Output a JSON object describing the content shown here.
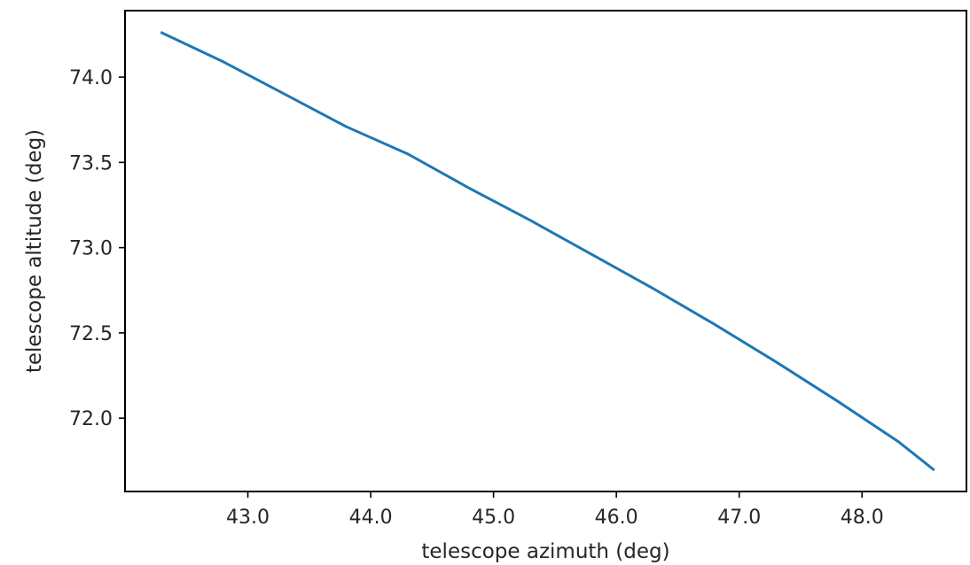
{
  "chart_data": {
    "type": "line",
    "title": "",
    "xlabel": "telescope azimuth (deg)",
    "ylabel": "telescope altitude (deg)",
    "xlim": [
      42.0,
      48.85
    ],
    "ylim": [
      71.57,
      74.39
    ],
    "xticks": [
      43.0,
      44.0,
      45.0,
      46.0,
      47.0,
      48.0
    ],
    "yticks": [
      72.0,
      72.5,
      73.0,
      73.5,
      74.0
    ],
    "tick_decimals": 1,
    "grid": false,
    "legend": "none",
    "series": [
      {
        "color": "#1f77b4",
        "x": [
          42.3,
          42.8,
          43.3,
          43.8,
          44.3,
          44.8,
          45.3,
          45.8,
          46.3,
          46.8,
          47.3,
          47.8,
          48.3,
          48.58
        ],
        "y": [
          74.26,
          74.09,
          73.9,
          73.71,
          73.55,
          73.35,
          73.16,
          72.96,
          72.76,
          72.55,
          72.33,
          72.1,
          71.86,
          71.7
        ]
      }
    ]
  }
}
